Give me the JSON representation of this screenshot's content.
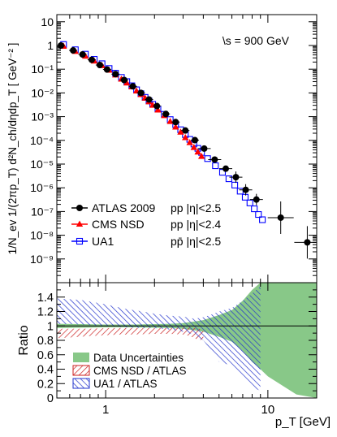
{
  "chart_data": [
    {
      "type": "scatter",
      "annotation": "\\s = 900 GeV",
      "ylabel": "1/N_ev 1/(2πp_T) d²N_ch/dηdp_T [ GeV⁻² ]",
      "xscale": "log",
      "yscale": "log",
      "xlim": [
        0.5,
        20
      ],
      "ylim": [
        1e-10,
        20
      ],
      "y_tick_labels": [
        "10",
        "1",
        "10⁻¹",
        "10⁻²",
        "10⁻³",
        "10⁻⁴",
        "10⁻⁵",
        "10⁻⁶",
        "10⁻⁷",
        "10⁻⁸",
        "10⁻⁹"
      ],
      "legend_position": "bottom-left",
      "series": [
        {
          "name": "ATLAS 2009",
          "selection": "pp |η|<2.5",
          "color": "#000000",
          "marker": "filled-circle",
          "points": [
            {
              "x": 0.53,
              "y": 1.0
            },
            {
              "x": 0.63,
              "y": 0.62
            },
            {
              "x": 0.72,
              "y": 0.42
            },
            {
              "x": 0.82,
              "y": 0.25
            },
            {
              "x": 0.92,
              "y": 0.15
            },
            {
              "x": 1.02,
              "y": 0.097
            },
            {
              "x": 1.15,
              "y": 0.062
            },
            {
              "x": 1.3,
              "y": 0.035
            },
            {
              "x": 1.47,
              "y": 0.019
            },
            {
              "x": 1.65,
              "y": 0.01
            },
            {
              "x": 1.85,
              "y": 0.0053
            },
            {
              "x": 2.07,
              "y": 0.0028
            },
            {
              "x": 2.35,
              "y": 0.0013
            },
            {
              "x": 2.7,
              "y": 0.00059
            },
            {
              "x": 3.1,
              "y": 0.00026
            },
            {
              "x": 3.55,
              "y": 0.000102
            },
            {
              "x": 4.05,
              "y": 4.5e-05
            },
            {
              "x": 4.7,
              "y": 1.55e-05
            },
            {
              "x": 5.5,
              "y": 6.4e-06
            },
            {
              "x": 6.35,
              "y": 2.8e-06
            },
            {
              "x": 7.3,
              "y": 8.2e-07
            },
            {
              "x": 8.5,
              "y": 3.2e-07
            },
            {
              "x": 12.0,
              "y": 5.5e-08
            },
            {
              "x": 17.5,
              "y": 5e-09
            }
          ]
        },
        {
          "name": "CMS NSD",
          "selection": "pp |η|<2.4",
          "color": "#ff0000",
          "marker": "filled-triangle",
          "points": [
            {
              "x": 0.55,
              "y": 0.92
            },
            {
              "x": 0.65,
              "y": 0.56
            },
            {
              "x": 0.75,
              "y": 0.35
            },
            {
              "x": 0.85,
              "y": 0.22
            },
            {
              "x": 0.95,
              "y": 0.14
            },
            {
              "x": 1.05,
              "y": 0.09
            },
            {
              "x": 1.15,
              "y": 0.057
            },
            {
              "x": 1.25,
              "y": 0.038
            },
            {
              "x": 1.35,
              "y": 0.026
            },
            {
              "x": 1.45,
              "y": 0.018
            },
            {
              "x": 1.55,
              "y": 0.012
            },
            {
              "x": 1.65,
              "y": 0.0085
            },
            {
              "x": 1.75,
              "y": 0.006
            },
            {
              "x": 1.85,
              "y": 0.0042
            },
            {
              "x": 1.95,
              "y": 0.003
            },
            {
              "x": 2.1,
              "y": 0.0019
            },
            {
              "x": 2.3,
              "y": 0.0011
            },
            {
              "x": 2.5,
              "y": 0.00062
            },
            {
              "x": 2.7,
              "y": 0.00036
            },
            {
              "x": 2.9,
              "y": 0.00022
            },
            {
              "x": 3.1,
              "y": 0.00013
            },
            {
              "x": 3.3,
              "y": 8e-05
            },
            {
              "x": 3.5,
              "y": 5e-05
            },
            {
              "x": 3.7,
              "y": 3.2e-05
            },
            {
              "x": 3.9,
              "y": 2.1e-05
            }
          ]
        },
        {
          "name": "UA1",
          "selection": "pp̄ |η|<2.5",
          "color": "#0000ff",
          "marker": "open-square",
          "points": [
            {
              "x": 0.55,
              "y": 1.1
            },
            {
              "x": 0.65,
              "y": 0.66
            },
            {
              "x": 0.75,
              "y": 0.43
            },
            {
              "x": 0.85,
              "y": 0.26
            },
            {
              "x": 0.95,
              "y": 0.17
            },
            {
              "x": 1.05,
              "y": 0.107
            },
            {
              "x": 1.15,
              "y": 0.068
            },
            {
              "x": 1.25,
              "y": 0.045
            },
            {
              "x": 1.35,
              "y": 0.03
            },
            {
              "x": 1.45,
              "y": 0.02
            },
            {
              "x": 1.55,
              "y": 0.0135
            },
            {
              "x": 1.65,
              "y": 0.0093
            },
            {
              "x": 1.75,
              "y": 0.0065
            },
            {
              "x": 1.85,
              "y": 0.0046
            },
            {
              "x": 1.95,
              "y": 0.0033
            },
            {
              "x": 2.1,
              "y": 0.0021
            },
            {
              "x": 2.3,
              "y": 0.00125
            },
            {
              "x": 2.5,
              "y": 0.00075
            },
            {
              "x": 2.7,
              "y": 0.00046
            },
            {
              "x": 2.9,
              "y": 0.00028
            },
            {
              "x": 3.1,
              "y": 0.000175
            },
            {
              "x": 3.3,
              "y": 0.00011
            },
            {
              "x": 3.5,
              "y": 7e-05
            },
            {
              "x": 3.7,
              "y": 4.6e-05
            },
            {
              "x": 3.9,
              "y": 3.1e-05
            },
            {
              "x": 4.25,
              "y": 1.7e-05
            },
            {
              "x": 4.75,
              "y": 8.5e-06
            },
            {
              "x": 5.25,
              "y": 4.5e-06
            },
            {
              "x": 5.75,
              "y": 2.4e-06
            },
            {
              "x": 6.25,
              "y": 1.3e-06
            },
            {
              "x": 6.75,
              "y": 7.2e-07
            },
            {
              "x": 7.25,
              "y": 4e-07
            },
            {
              "x": 7.75,
              "y": 2.3e-07
            },
            {
              "x": 8.25,
              "y": 1.3e-07
            },
            {
              "x": 8.75,
              "y": 7.5e-08
            },
            {
              "x": 9.25,
              "y": 4.5e-08
            }
          ]
        }
      ]
    },
    {
      "type": "area",
      "ylabel": "Ratio",
      "xlabel": "p_T [GeV]",
      "xscale": "log",
      "xlim": [
        0.5,
        20
      ],
      "ylim": [
        0,
        1.6
      ],
      "x_tick_labels": [
        "1",
        "10"
      ],
      "y_tick_labels": [
        "0",
        "0.2",
        "0.4",
        "0.6",
        "0.8",
        "1",
        "1.2",
        "1.4"
      ],
      "reference_line": 1.0,
      "legend_position": "bottom-left",
      "bands": [
        {
          "name": "Data Uncertainties",
          "color": "#88c888",
          "style": "solid",
          "x": [
            0.5,
            0.7,
            1.0,
            1.5,
            2.0,
            2.5,
            3.0,
            3.5,
            4.0,
            5.0,
            6.0,
            7.0,
            8.0,
            9.0,
            10.0,
            15.0,
            20.0
          ],
          "low": [
            0.97,
            0.975,
            0.98,
            0.98,
            0.975,
            0.97,
            0.96,
            0.94,
            0.92,
            0.85,
            0.78,
            0.65,
            0.5,
            0.4,
            0.3,
            0.05,
            0.0
          ],
          "high": [
            1.03,
            1.025,
            1.02,
            1.02,
            1.025,
            1.03,
            1.04,
            1.06,
            1.08,
            1.15,
            1.22,
            1.35,
            1.5,
            1.6,
            1.65,
            1.6,
            1.6
          ]
        },
        {
          "name": "CMS NSD / ATLAS",
          "color": "#cc2222",
          "style": "hatched",
          "x": [
            0.5,
            0.6,
            0.8,
            1.0,
            1.2,
            1.5,
            2.0,
            2.5,
            3.0,
            3.3,
            3.6,
            4.0
          ],
          "low": [
            0.83,
            0.84,
            0.86,
            0.87,
            0.88,
            0.88,
            0.89,
            0.89,
            0.88,
            0.86,
            0.82,
            0.8
          ],
          "high": [
            0.96,
            0.96,
            0.96,
            0.97,
            0.97,
            0.97,
            0.97,
            0.97,
            0.98,
            0.98,
            0.97,
            0.95
          ]
        },
        {
          "name": "UA1 / ATLAS",
          "color": "#2233cc",
          "style": "hatched",
          "x": [
            0.5,
            0.7,
            1.0,
            1.3,
            1.7,
            2.0,
            2.5,
            3.0,
            3.5,
            4.0,
            4.5,
            5.0,
            6.0,
            7.0,
            8.0,
            9.0
          ],
          "low": [
            1.03,
            1.02,
            1.0,
            0.98,
            0.97,
            0.97,
            0.95,
            0.92,
            0.88,
            0.8,
            0.65,
            0.5,
            0.45,
            0.3,
            0.15,
            0.1
          ],
          "high": [
            1.38,
            1.36,
            1.3,
            1.24,
            1.2,
            1.17,
            1.14,
            1.13,
            1.1,
            1.12,
            1.16,
            1.2,
            1.25,
            1.35,
            1.45,
            1.55
          ]
        }
      ]
    }
  ]
}
